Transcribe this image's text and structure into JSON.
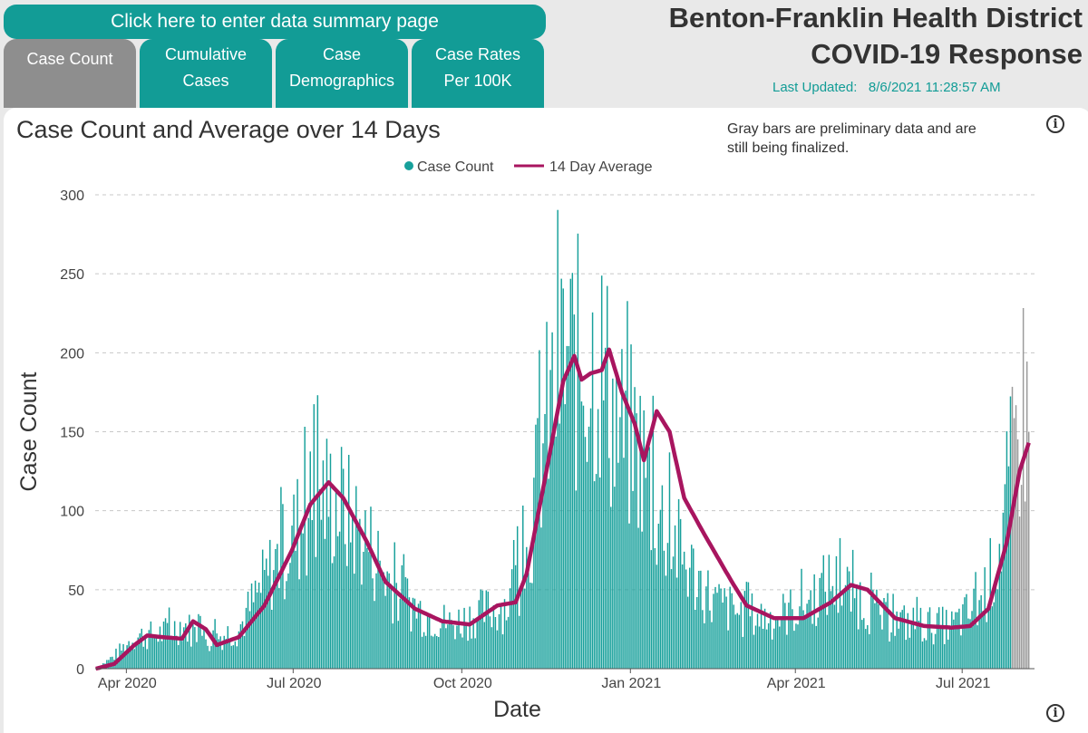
{
  "summary_button": "Click here to enter data summary page",
  "tabs": [
    {
      "label_line1": "Case Count",
      "label_line2": "",
      "active": true
    },
    {
      "label_line1": "Cumulative",
      "label_line2": "Cases",
      "active": false
    },
    {
      "label_line1": "Case",
      "label_line2": "Demographics",
      "active": false
    },
    {
      "label_line1": "Case Rates",
      "label_line2": "Per 100K",
      "active": false
    }
  ],
  "header": {
    "title_line1": "Benton-Franklin Health District",
    "title_line2": "COVID-19 Response",
    "last_updated_label": "Last Updated:",
    "last_updated_value": "8/6/2021 11:28:57 AM"
  },
  "info_icon": "info-icon",
  "colors": {
    "accent": "#129c96",
    "bar": "#17a09b",
    "preliminary": "#9a9a9a",
    "line": "#a8155f"
  },
  "chart_data": {
    "type": "bar",
    "title": "Case Count and Average over 14 Days",
    "note": "Gray bars are preliminary data and are still being finalized.",
    "xlabel": "Date",
    "ylabel": "Case Count",
    "ylim": [
      0,
      300
    ],
    "yticks": [
      0,
      50,
      100,
      150,
      200,
      250,
      300
    ],
    "xticks": [
      "Apr 2020",
      "Jul 2020",
      "Oct 2020",
      "Jan 2021",
      "Apr 2021",
      "Jul 2021"
    ],
    "x_start": "2020-03-15",
    "x_end": "2021-08-06",
    "grid": true,
    "legend_position": "top-center",
    "series": [
      {
        "name": "Case Count",
        "type": "bar",
        "note": "daily values shown; last 10 days preliminary (gray)"
      },
      {
        "name": "14 Day Average",
        "type": "line"
      }
    ],
    "daily_anchors": [
      [
        "2020-03-15",
        0
      ],
      [
        "2020-03-25",
        8
      ],
      [
        "2020-04-05",
        20
      ],
      [
        "2020-04-20",
        22
      ],
      [
        "2020-05-01",
        28
      ],
      [
        "2020-05-15",
        18
      ],
      [
        "2020-06-01",
        25
      ],
      [
        "2020-06-15",
        55
      ],
      [
        "2020-07-01",
        85
      ],
      [
        "2020-07-15",
        110
      ],
      [
        "2020-07-25",
        105
      ],
      [
        "2020-08-10",
        80
      ],
      [
        "2020-08-25",
        50
      ],
      [
        "2020-09-10",
        35
      ],
      [
        "2020-09-25",
        28
      ],
      [
        "2020-10-10",
        35
      ],
      [
        "2020-10-25",
        40
      ],
      [
        "2020-11-05",
        70
      ],
      [
        "2020-11-15",
        150
      ],
      [
        "2020-11-25",
        195
      ],
      [
        "2020-12-05",
        190
      ],
      [
        "2020-12-15",
        195
      ],
      [
        "2020-12-25",
        150
      ],
      [
        "2021-01-05",
        140
      ],
      [
        "2021-01-15",
        100
      ],
      [
        "2021-02-01",
        65
      ],
      [
        "2021-02-15",
        42
      ],
      [
        "2021-03-01",
        35
      ],
      [
        "2021-03-20",
        32
      ],
      [
        "2021-04-05",
        40
      ],
      [
        "2021-04-20",
        55
      ],
      [
        "2021-05-05",
        45
      ],
      [
        "2021-05-20",
        30
      ],
      [
        "2021-06-10",
        28
      ],
      [
        "2021-06-25",
        27
      ],
      [
        "2021-07-10",
        40
      ],
      [
        "2021-07-20",
        70
      ],
      [
        "2021-07-27",
        120
      ],
      [
        "2021-08-03",
        170
      ],
      [
        "2021-08-06",
        150
      ]
    ],
    "average_anchors": [
      [
        "2020-03-15",
        0
      ],
      [
        "2020-03-25",
        3
      ],
      [
        "2020-04-05",
        15
      ],
      [
        "2020-04-12",
        21
      ],
      [
        "2020-04-20",
        20
      ],
      [
        "2020-05-01",
        19
      ],
      [
        "2020-05-07",
        30
      ],
      [
        "2020-05-14",
        25
      ],
      [
        "2020-05-20",
        15
      ],
      [
        "2020-06-01",
        20
      ],
      [
        "2020-06-15",
        40
      ],
      [
        "2020-06-30",
        75
      ],
      [
        "2020-07-10",
        104
      ],
      [
        "2020-07-20",
        118
      ],
      [
        "2020-07-28",
        108
      ],
      [
        "2020-08-10",
        80
      ],
      [
        "2020-08-20",
        55
      ],
      [
        "2020-09-05",
        38
      ],
      [
        "2020-09-20",
        30
      ],
      [
        "2020-10-05",
        28
      ],
      [
        "2020-10-20",
        40
      ],
      [
        "2020-10-30",
        42
      ],
      [
        "2020-11-05",
        60
      ],
      [
        "2020-11-15",
        120
      ],
      [
        "2020-11-25",
        182
      ],
      [
        "2020-12-01",
        198
      ],
      [
        "2020-12-05",
        183
      ],
      [
        "2020-12-10",
        187
      ],
      [
        "2020-12-16",
        189
      ],
      [
        "2020-12-20",
        202
      ],
      [
        "2020-12-27",
        175
      ],
      [
        "2021-01-03",
        155
      ],
      [
        "2021-01-08",
        132
      ],
      [
        "2021-01-15",
        163
      ],
      [
        "2021-01-22",
        150
      ],
      [
        "2021-01-30",
        108
      ],
      [
        "2021-02-10",
        85
      ],
      [
        "2021-02-25",
        55
      ],
      [
        "2021-03-05",
        40
      ],
      [
        "2021-03-20",
        32
      ],
      [
        "2021-04-05",
        32
      ],
      [
        "2021-04-20",
        42
      ],
      [
        "2021-05-01",
        53
      ],
      [
        "2021-05-10",
        50
      ],
      [
        "2021-05-25",
        32
      ],
      [
        "2021-06-10",
        27
      ],
      [
        "2021-06-25",
        26
      ],
      [
        "2021-07-05",
        27
      ],
      [
        "2021-07-15",
        38
      ],
      [
        "2021-07-25",
        80
      ],
      [
        "2021-08-01",
        125
      ],
      [
        "2021-08-06",
        143
      ]
    ]
  }
}
